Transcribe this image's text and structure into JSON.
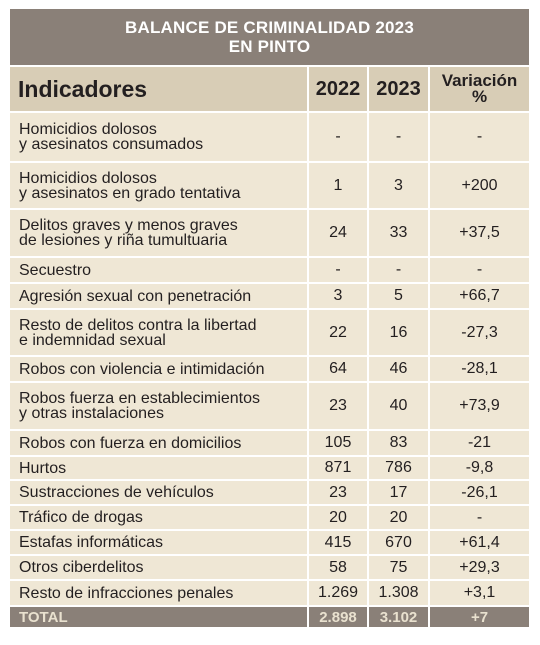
{
  "title": {
    "line1": "BALANCE DE CRIMINALIDAD 2023",
    "line2": "EN PINTO"
  },
  "header": {
    "indicator": "Indicadores",
    "y2022": "2022",
    "y2023": "2023",
    "var_line1": "Variación",
    "var_line2": "%"
  },
  "rows": [
    {
      "label1": "Homicidios dolosos",
      "label2": "y asesinatos consumados",
      "v2022": "-",
      "v2023": "-",
      "var": "-"
    },
    {
      "label1": "Homicidios dolosos",
      "label2": "y asesinatos en grado tentativa",
      "v2022": "1",
      "v2023": "3",
      "var": "+200"
    },
    {
      "label1": "Delitos graves y menos graves",
      "label2": "de lesiones y riña tumultuaria",
      "v2022": "24",
      "v2023": "33",
      "var": "+37,5"
    },
    {
      "label1": "Secuestro",
      "label2": "",
      "v2022": "-",
      "v2023": "-",
      "var": "-"
    },
    {
      "label1": "Agresión sexual con penetración",
      "label2": "",
      "v2022": "3",
      "v2023": "5",
      "var": "+66,7"
    },
    {
      "label1": "Resto de delitos contra la libertad",
      "label2": "e indemnidad sexual",
      "v2022": "22",
      "v2023": "16",
      "var": "-27,3"
    },
    {
      "label1": "Robos con violencia e intimidación",
      "label2": "",
      "v2022": "64",
      "v2023": "46",
      "var": "-28,1"
    },
    {
      "label1": "Robos fuerza en establecimientos",
      "label2": "y otras instalaciones",
      "v2022": "23",
      "v2023": "40",
      "var": "+73,9"
    },
    {
      "label1": "Robos con fuerza en domicilios",
      "label2": "",
      "v2022": "105",
      "v2023": "83",
      "var": "-21"
    },
    {
      "label1": "Hurtos",
      "label2": "",
      "v2022": "871",
      "v2023": "786",
      "var": "-9,8"
    },
    {
      "label1": "Sustracciones de vehículos",
      "label2": "",
      "v2022": "23",
      "v2023": "17",
      "var": "-26,1"
    },
    {
      "label1": "Tráfico de drogas",
      "label2": "",
      "v2022": "20",
      "v2023": "20",
      "var": "-"
    },
    {
      "label1": "Estafas informáticas",
      "label2": "",
      "v2022": "415",
      "v2023": "670",
      "var": "+61,4"
    },
    {
      "label1": "Otros ciberdelitos",
      "label2": "",
      "v2022": "58",
      "v2023": "75",
      "var": "+29,3"
    },
    {
      "label1": "Resto de infracciones penales",
      "label2": "",
      "v2022": "1.269",
      "v2023": "1.308",
      "var": "+3,1"
    }
  ],
  "total": {
    "label": "TOTAL",
    "v2022": "2.898",
    "v2023": "3.102",
    "var": "+7"
  },
  "colors": {
    "title_bg": "#8a8078",
    "header_bg": "#d8cdb6",
    "row_bg": "#efe7d5",
    "total_text": "#e9e1cf"
  }
}
